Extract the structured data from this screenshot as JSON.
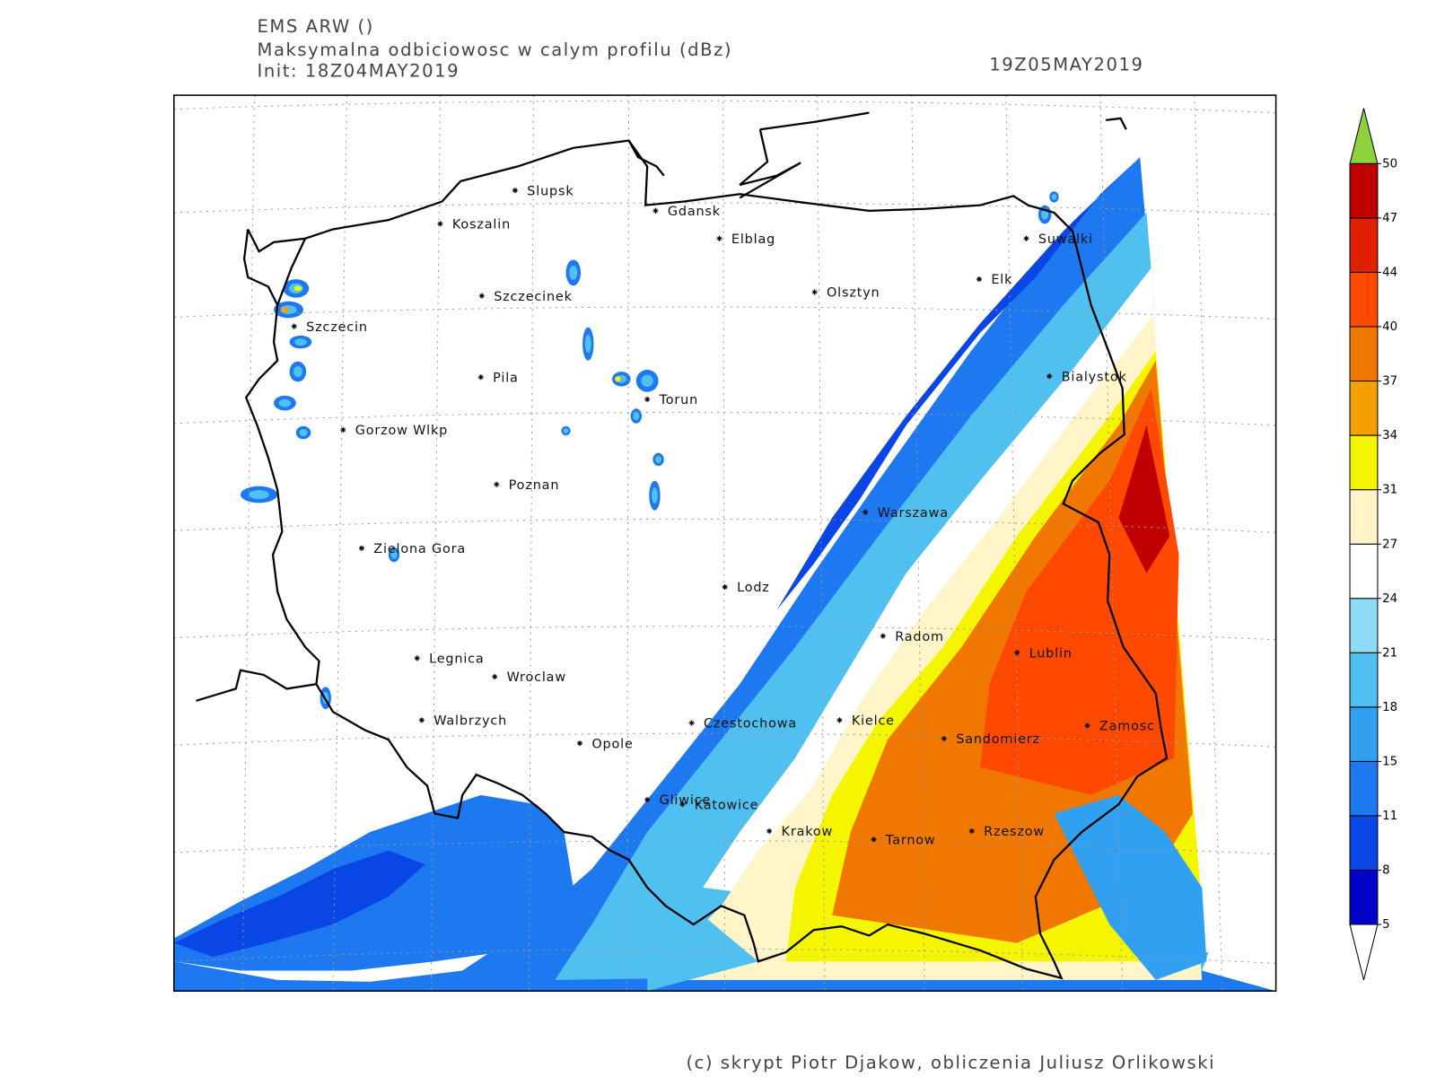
{
  "header": {
    "model": "EMS ARW ()",
    "field": "Maksymalna odbiciowosc w calym profilu (dBz)",
    "init": "Init: 18Z04MAY2019",
    "valid": "19Z05MAY2019"
  },
  "cities": [
    "Slupsk",
    "Koszalin",
    "Gdansk",
    "Elblag",
    "Suwalki",
    "Elk",
    "Olsztyn",
    "Szczecinek",
    "Szczecin",
    "Pila",
    "Torun",
    "Bialystok",
    "Gorzow Wlkp",
    "Poznan",
    "Warszawa",
    "Zielona Gora",
    "Lodz",
    "Radom",
    "Lublin",
    "Legnica",
    "Wroclaw",
    "Walbrzych",
    "Czestochowa",
    "Kielce",
    "Opole",
    "Sandomierz",
    "Zamosc",
    "Gliwice",
    "Katowice",
    "Krakow",
    "Tarnow",
    "Rzeszow"
  ],
  "colorbar": {
    "levels": [
      5,
      8,
      11,
      15,
      18,
      21,
      24,
      27,
      31,
      34,
      37,
      40,
      44,
      47,
      50
    ],
    "colors": [
      "#0000c8",
      "#0a46e6",
      "#1e78f0",
      "#32a0f0",
      "#50c0f0",
      "#8cdcf8",
      "#ffffff",
      "#fff5c8",
      "#f5f500",
      "#f5a000",
      "#f07800",
      "#ff4800",
      "#e02000",
      "#c00000"
    ],
    "under_color": "#ffffff",
    "over_color": "#8cd23c"
  },
  "footer": "(c) skrypt Piotr Djakow, obliczenia Juliusz Orlikowski"
}
